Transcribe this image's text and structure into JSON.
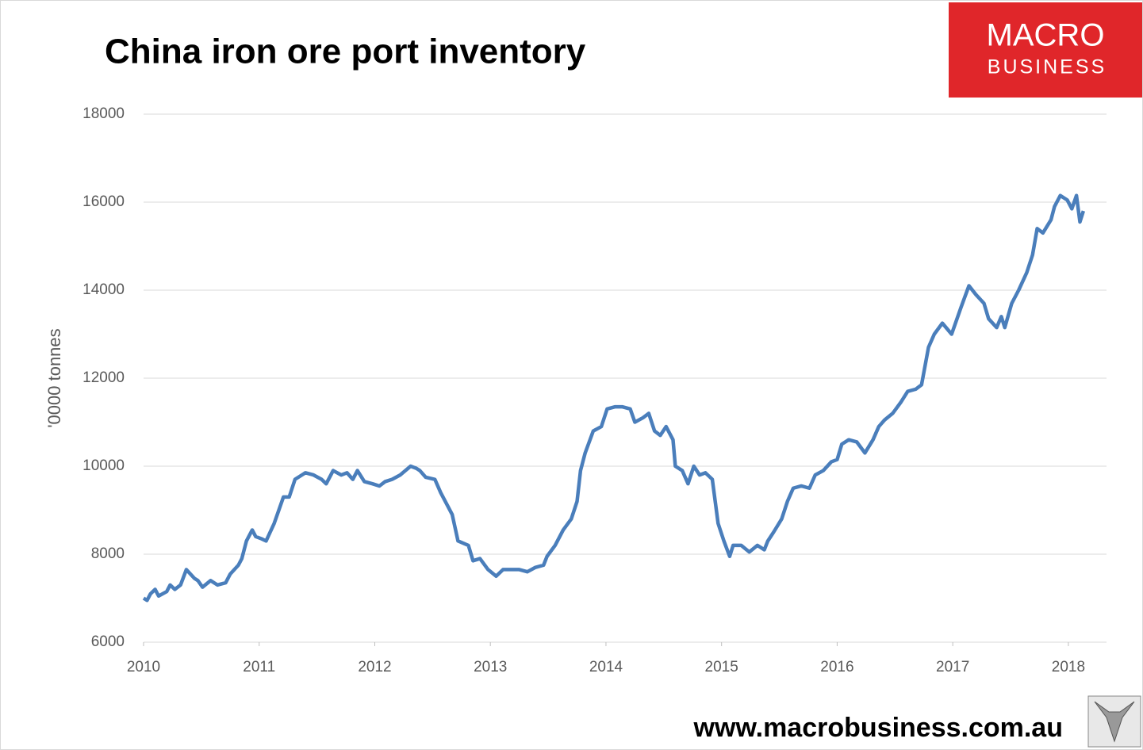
{
  "chart_data": {
    "type": "line",
    "title": "China iron ore port inventory",
    "y_label": "'0000 tonnes",
    "x": [
      2010.0,
      2010.03,
      2010.06,
      2010.1,
      2010.13,
      2010.2,
      2010.23,
      2010.27,
      2010.32,
      2010.37,
      2010.44,
      2010.47,
      2010.51,
      2010.58,
      2010.64,
      2010.71,
      2010.75,
      2010.82,
      2010.85,
      2010.89,
      2010.94,
      2010.97,
      2011.02,
      2011.06,
      2011.13,
      2011.17,
      2011.21,
      2011.26,
      2011.31,
      2011.4,
      2011.47,
      2011.54,
      2011.58,
      2011.64,
      2011.71,
      2011.76,
      2011.81,
      2011.85,
      2011.91,
      2011.98,
      2012.04,
      2012.09,
      2012.15,
      2012.22,
      2012.31,
      2012.36,
      2012.39,
      2012.44,
      2012.52,
      2012.57,
      2012.63,
      2012.67,
      2012.72,
      2012.81,
      2012.85,
      2012.91,
      2012.98,
      2013.05,
      2013.11,
      2013.18,
      2013.25,
      2013.32,
      2013.39,
      2013.46,
      2013.49,
      2013.56,
      2013.63,
      2013.7,
      2013.75,
      2013.78,
      2013.82,
      2013.89,
      2013.96,
      2014.01,
      2014.08,
      2014.14,
      2014.21,
      2014.25,
      2014.32,
      2014.37,
      2014.42,
      2014.47,
      2014.52,
      2014.58,
      2014.6,
      2014.66,
      2014.71,
      2014.76,
      2014.81,
      2014.86,
      2014.92,
      2014.97,
      2015.02,
      2015.07,
      2015.1,
      2015.17,
      2015.24,
      2015.31,
      2015.37,
      2015.4,
      2015.45,
      2015.52,
      2015.57,
      2015.62,
      2015.69,
      2015.76,
      2015.81,
      2015.88,
      2015.95,
      2016.0,
      2016.04,
      2016.1,
      2016.17,
      2016.24,
      2016.31,
      2016.36,
      2016.41,
      2016.48,
      2016.55,
      2016.61,
      2016.68,
      2016.73,
      2016.79,
      2016.84,
      2016.91,
      2016.99,
      2017.07,
      2017.14,
      2017.2,
      2017.27,
      2017.31,
      2017.38,
      2017.42,
      2017.45,
      2017.51,
      2017.57,
      2017.64,
      2017.69,
      2017.73,
      2017.78,
      2017.85,
      2017.88,
      2017.93,
      2017.99,
      2018.03,
      2018.07,
      2018.1,
      2018.13
    ],
    "series": [
      {
        "color": "#4a7ebb",
        "values": [
          7000,
          6950,
          7100,
          7200,
          7050,
          7150,
          7300,
          7200,
          7300,
          7650,
          7450,
          7400,
          7250,
          7400,
          7300,
          7350,
          7550,
          7750,
          7900,
          8300,
          8550,
          8400,
          8350,
          8300,
          8700,
          9000,
          9300,
          9300,
          9700,
          9850,
          9800,
          9700,
          9600,
          9900,
          9800,
          9850,
          9700,
          9900,
          9650,
          9600,
          9550,
          9650,
          9700,
          9800,
          10000,
          9950,
          9900,
          9750,
          9700,
          9400,
          9100,
          8900,
          8300,
          8200,
          7850,
          7900,
          7650,
          7500,
          7650,
          7650,
          7650,
          7600,
          7700,
          7750,
          7950,
          8200,
          8550,
          8800,
          9200,
          9900,
          10300,
          10800,
          10900,
          11300,
          11350,
          11350,
          11300,
          11000,
          11100,
          11200,
          10800,
          10700,
          10900,
          10600,
          10000,
          9900,
          9600,
          10000,
          9800,
          9850,
          9700,
          8700,
          8300,
          7950,
          8200,
          8200,
          8050,
          8200,
          8100,
          8300,
          8500,
          8800,
          9200,
          9500,
          9550,
          9500,
          9800,
          9900,
          10100,
          10150,
          10500,
          10600,
          10550,
          10300,
          10600,
          10900,
          11050,
          11200,
          11450,
          11700,
          11750,
          11850,
          12700,
          13000,
          13250,
          13000,
          13600,
          14100,
          13900,
          13700,
          13350,
          13150,
          13400,
          13150,
          13700,
          14000,
          14400,
          14800,
          15400,
          15300,
          15600,
          15900,
          16150,
          16050,
          15850,
          16150,
          15550,
          15800
        ]
      }
    ],
    "xlim": [
      2010,
      2018.33
    ],
    "xticks": [
      2010,
      2011,
      2012,
      2013,
      2014,
      2015,
      2016,
      2017,
      2018
    ],
    "ylim": [
      6000,
      18000
    ],
    "yticks": [
      6000,
      8000,
      10000,
      12000,
      14000,
      16000,
      18000
    ],
    "grid": true
  },
  "logo": {
    "line1": "MACRO",
    "line2": "BUSINESS"
  },
  "website": "www.macrobusiness.com.au"
}
